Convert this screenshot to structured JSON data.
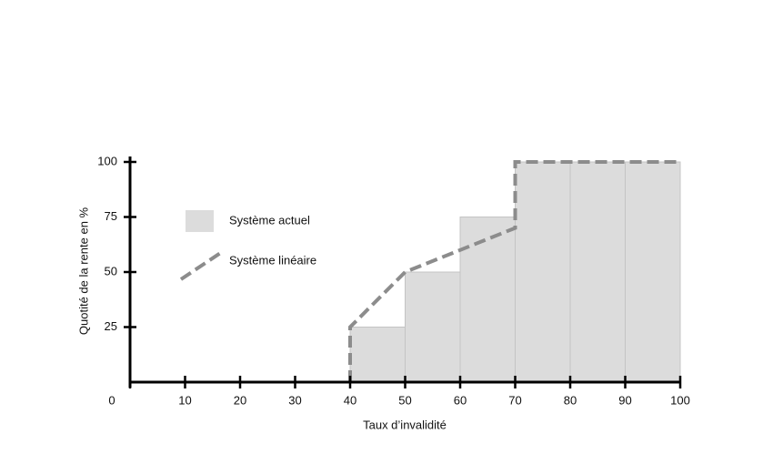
{
  "chart_data": {
    "type": "histogram",
    "x_label": "Taux d’invalidité",
    "y_label": "Quotité de la rente en %",
    "xlim": [
      0,
      100
    ],
    "ylim": [
      0,
      100
    ],
    "xticks": [
      0,
      10,
      20,
      30,
      40,
      50,
      60,
      70,
      80,
      90,
      100
    ],
    "yticks": [
      25,
      50,
      75,
      100
    ],
    "bins": [
      40,
      50,
      60,
      70,
      80,
      90,
      100
    ],
    "series": [
      {
        "name": "Système actuel",
        "color": "#dcdcdc",
        "values": [
          25,
          50,
          75,
          100,
          100,
          100
        ]
      },
      {
        "name": "Système linéaire",
        "type": "line",
        "color": "#8c8c8c",
        "x": [
          40,
          40,
          50,
          60,
          70,
          70,
          100
        ],
        "values": [
          0,
          25,
          50,
          60,
          70,
          100,
          100
        ]
      }
    ]
  }
}
